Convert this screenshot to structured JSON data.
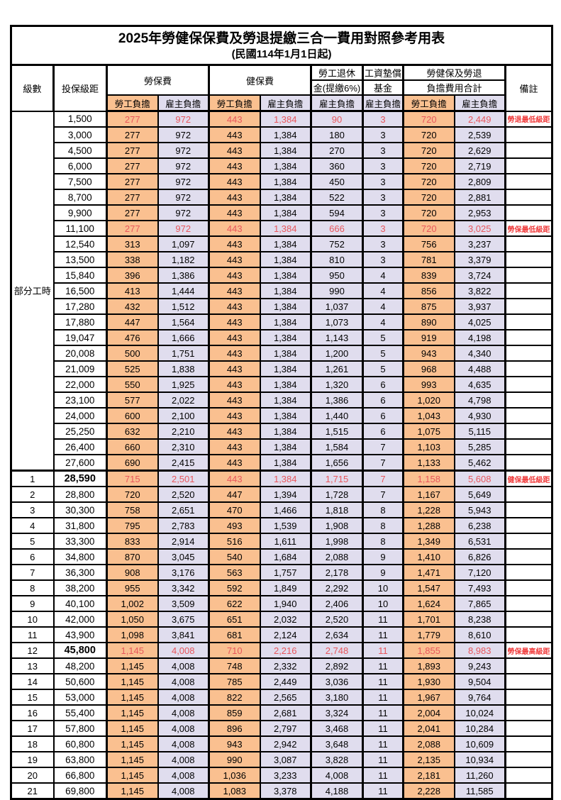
{
  "title": "2025年勞健保保費及勞退提繳三合一費用對照參考用表",
  "subtitle": "(民國114年1月1日起)",
  "colors": {
    "employee_bg": "#FAC090",
    "employer_bg": "#E0DDEE",
    "highlight_red": "#E8575C",
    "note_red": "#F03C3C"
  },
  "header": {
    "level": "級數",
    "bracket": "投保級距",
    "labor": "勞保費",
    "health": "健保費",
    "pension1": "勞工退休",
    "pension2": "金(提繳6%)",
    "fund1": "工資墊償",
    "fund2": "基金",
    "total1": "勞健保及勞退",
    "total2": "負擔費用合計",
    "note": "備註",
    "employee": "勞工負擔",
    "employer": "雇主負擔"
  },
  "part_time_label": "部分工時",
  "part_time_span": 23,
  "rows": [
    {
      "l": "",
      "b": "1,500",
      "v": [
        "277",
        "972",
        "443",
        "1,384",
        "90",
        "3",
        "720",
        "2,449"
      ],
      "n": "勞退最低級距",
      "red": true
    },
    {
      "l": "",
      "b": "3,000",
      "v": [
        "277",
        "972",
        "443",
        "1,384",
        "180",
        "3",
        "720",
        "2,539"
      ],
      "n": ""
    },
    {
      "l": "",
      "b": "4,500",
      "v": [
        "277",
        "972",
        "443",
        "1,384",
        "270",
        "3",
        "720",
        "2,629"
      ],
      "n": ""
    },
    {
      "l": "",
      "b": "6,000",
      "v": [
        "277",
        "972",
        "443",
        "1,384",
        "360",
        "3",
        "720",
        "2,719"
      ],
      "n": ""
    },
    {
      "l": "",
      "b": "7,500",
      "v": [
        "277",
        "972",
        "443",
        "1,384",
        "450",
        "3",
        "720",
        "2,809"
      ],
      "n": ""
    },
    {
      "l": "",
      "b": "8,700",
      "v": [
        "277",
        "972",
        "443",
        "1,384",
        "522",
        "3",
        "720",
        "2,881"
      ],
      "n": ""
    },
    {
      "l": "",
      "b": "9,900",
      "v": [
        "277",
        "972",
        "443",
        "1,384",
        "594",
        "3",
        "720",
        "2,953"
      ],
      "n": ""
    },
    {
      "l": "",
      "b": "11,100",
      "v": [
        "277",
        "972",
        "443",
        "1,384",
        "666",
        "3",
        "720",
        "3,025"
      ],
      "n": "勞保最低級距",
      "red": true
    },
    {
      "l": "",
      "b": "12,540",
      "v": [
        "313",
        "1,097",
        "443",
        "1,384",
        "752",
        "3",
        "756",
        "3,237"
      ],
      "n": ""
    },
    {
      "l": "",
      "b": "13,500",
      "v": [
        "338",
        "1,182",
        "443",
        "1,384",
        "810",
        "3",
        "781",
        "3,379"
      ],
      "n": ""
    },
    {
      "l": "",
      "b": "15,840",
      "v": [
        "396",
        "1,386",
        "443",
        "1,384",
        "950",
        "4",
        "839",
        "3,724"
      ],
      "n": ""
    },
    {
      "l": "",
      "b": "16,500",
      "v": [
        "413",
        "1,444",
        "443",
        "1,384",
        "990",
        "4",
        "856",
        "3,822"
      ],
      "n": ""
    },
    {
      "l": "",
      "b": "17,280",
      "v": [
        "432",
        "1,512",
        "443",
        "1,384",
        "1,037",
        "4",
        "875",
        "3,937"
      ],
      "n": ""
    },
    {
      "l": "",
      "b": "17,880",
      "v": [
        "447",
        "1,564",
        "443",
        "1,384",
        "1,073",
        "4",
        "890",
        "4,025"
      ],
      "n": ""
    },
    {
      "l": "",
      "b": "19,047",
      "v": [
        "476",
        "1,666",
        "443",
        "1,384",
        "1,143",
        "5",
        "919",
        "4,198"
      ],
      "n": ""
    },
    {
      "l": "",
      "b": "20,008",
      "v": [
        "500",
        "1,751",
        "443",
        "1,384",
        "1,200",
        "5",
        "943",
        "4,340"
      ],
      "n": ""
    },
    {
      "l": "",
      "b": "21,009",
      "v": [
        "525",
        "1,838",
        "443",
        "1,384",
        "1,261",
        "5",
        "968",
        "4,488"
      ],
      "n": ""
    },
    {
      "l": "",
      "b": "22,000",
      "v": [
        "550",
        "1,925",
        "443",
        "1,384",
        "1,320",
        "6",
        "993",
        "4,635"
      ],
      "n": ""
    },
    {
      "l": "",
      "b": "23,100",
      "v": [
        "577",
        "2,022",
        "443",
        "1,384",
        "1,386",
        "6",
        "1,020",
        "4,798"
      ],
      "n": ""
    },
    {
      "l": "",
      "b": "24,000",
      "v": [
        "600",
        "2,100",
        "443",
        "1,384",
        "1,440",
        "6",
        "1,043",
        "4,930"
      ],
      "n": ""
    },
    {
      "l": "",
      "b": "25,250",
      "v": [
        "632",
        "2,210",
        "443",
        "1,384",
        "1,515",
        "6",
        "1,075",
        "5,115"
      ],
      "n": ""
    },
    {
      "l": "",
      "b": "26,400",
      "v": [
        "660",
        "2,310",
        "443",
        "1,384",
        "1,584",
        "7",
        "1,103",
        "5,285"
      ],
      "n": ""
    },
    {
      "l": "",
      "b": "27,600",
      "v": [
        "690",
        "2,415",
        "443",
        "1,384",
        "1,656",
        "7",
        "1,133",
        "5,462"
      ],
      "n": ""
    },
    {
      "l": "1",
      "b": "28,590",
      "v": [
        "715",
        "2,501",
        "443",
        "1,384",
        "1,715",
        "7",
        "1,158",
        "5,608"
      ],
      "n": "健保最低級距",
      "red": true,
      "bold": true,
      "thick_top": true
    },
    {
      "l": "2",
      "b": "28,800",
      "v": [
        "720",
        "2,520",
        "447",
        "1,394",
        "1,728",
        "7",
        "1,167",
        "5,649"
      ],
      "n": ""
    },
    {
      "l": "3",
      "b": "30,300",
      "v": [
        "758",
        "2,651",
        "470",
        "1,466",
        "1,818",
        "8",
        "1,228",
        "5,943"
      ],
      "n": ""
    },
    {
      "l": "4",
      "b": "31,800",
      "v": [
        "795",
        "2,783",
        "493",
        "1,539",
        "1,908",
        "8",
        "1,288",
        "6,238"
      ],
      "n": ""
    },
    {
      "l": "5",
      "b": "33,300",
      "v": [
        "833",
        "2,914",
        "516",
        "1,611",
        "1,998",
        "8",
        "1,349",
        "6,531"
      ],
      "n": ""
    },
    {
      "l": "6",
      "b": "34,800",
      "v": [
        "870",
        "3,045",
        "540",
        "1,684",
        "2,088",
        "9",
        "1,410",
        "6,826"
      ],
      "n": ""
    },
    {
      "l": "7",
      "b": "36,300",
      "v": [
        "908",
        "3,176",
        "563",
        "1,757",
        "2,178",
        "9",
        "1,471",
        "7,120"
      ],
      "n": ""
    },
    {
      "l": "8",
      "b": "38,200",
      "v": [
        "955",
        "3,342",
        "592",
        "1,849",
        "2,292",
        "10",
        "1,547",
        "7,493"
      ],
      "n": ""
    },
    {
      "l": "9",
      "b": "40,100",
      "v": [
        "1,002",
        "3,509",
        "622",
        "1,940",
        "2,406",
        "10",
        "1,624",
        "7,865"
      ],
      "n": ""
    },
    {
      "l": "10",
      "b": "42,000",
      "v": [
        "1,050",
        "3,675",
        "651",
        "2,032",
        "2,520",
        "11",
        "1,701",
        "8,238"
      ],
      "n": ""
    },
    {
      "l": "11",
      "b": "43,900",
      "v": [
        "1,098",
        "3,841",
        "681",
        "2,124",
        "2,634",
        "11",
        "1,779",
        "8,610"
      ],
      "n": ""
    },
    {
      "l": "12",
      "b": "45,800",
      "v": [
        "1,145",
        "4,008",
        "710",
        "2,216",
        "2,748",
        "11",
        "1,855",
        "8,983"
      ],
      "n": "勞保最高級距",
      "red": true,
      "bold": true
    },
    {
      "l": "13",
      "b": "48,200",
      "v": [
        "1,145",
        "4,008",
        "748",
        "2,332",
        "2,892",
        "11",
        "1,893",
        "9,243"
      ],
      "n": ""
    },
    {
      "l": "14",
      "b": "50,600",
      "v": [
        "1,145",
        "4,008",
        "785",
        "2,449",
        "3,036",
        "11",
        "1,930",
        "9,504"
      ],
      "n": ""
    },
    {
      "l": "15",
      "b": "53,000",
      "v": [
        "1,145",
        "4,008",
        "822",
        "2,565",
        "3,180",
        "11",
        "1,967",
        "9,764"
      ],
      "n": ""
    },
    {
      "l": "16",
      "b": "55,400",
      "v": [
        "1,145",
        "4,008",
        "859",
        "2,681",
        "3,324",
        "11",
        "2,004",
        "10,024"
      ],
      "n": ""
    },
    {
      "l": "17",
      "b": "57,800",
      "v": [
        "1,145",
        "4,008",
        "896",
        "2,797",
        "3,468",
        "11",
        "2,041",
        "10,284"
      ],
      "n": ""
    },
    {
      "l": "18",
      "b": "60,800",
      "v": [
        "1,145",
        "4,008",
        "943",
        "2,942",
        "3,648",
        "11",
        "2,088",
        "10,609"
      ],
      "n": ""
    },
    {
      "l": "19",
      "b": "63,800",
      "v": [
        "1,145",
        "4,008",
        "990",
        "3,087",
        "3,828",
        "11",
        "2,135",
        "10,934"
      ],
      "n": ""
    },
    {
      "l": "20",
      "b": "66,800",
      "v": [
        "1,145",
        "4,008",
        "1,036",
        "3,233",
        "4,008",
        "11",
        "2,181",
        "11,260"
      ],
      "n": ""
    },
    {
      "l": "21",
      "b": "69,800",
      "v": [
        "1,145",
        "4,008",
        "1,083",
        "3,378",
        "4,188",
        "11",
        "2,228",
        "11,585"
      ],
      "n": ""
    }
  ]
}
